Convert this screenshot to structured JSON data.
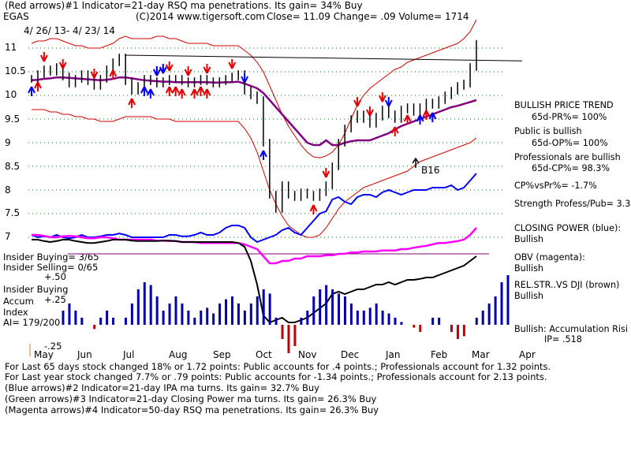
{
  "header": {
    "line1": "(Red arrows)#1 Indicator=21-day RSQ ma penetrations. Its gain= 34% Buy",
    "line2_ticker": "EGAS",
    "line2_copyright": "(C)2014 www.tigersoft.com",
    "line2_quote": "Close=  11.09  Change= .09 Volume= 1714",
    "date_range": "4/ 26/ 13-  4/ 23/ 14"
  },
  "chart_data": {
    "type": "line",
    "x_months": [
      "May",
      "Jun",
      "Jul",
      "Aug",
      "Sep",
      "Oct",
      "Nov",
      "Dec",
      "Jan",
      "Feb",
      "Mar",
      "Apr"
    ],
    "y_ticks": [
      "11",
      "10.5",
      "10",
      "9.5",
      "9",
      "8.5",
      "8",
      "7.5",
      "7"
    ],
    "price_ylim": [
      7,
      11
    ],
    "annotation": "B16",
    "accum_ticks": [
      "+.50",
      "+.25",
      "-.25"
    ],
    "price": [
      10.35,
      10.45,
      10.55,
      10.5,
      10.6,
      10.4,
      10.25,
      10.35,
      10.45,
      10.3,
      10.2,
      10.35,
      10.55,
      10.7,
      10.8,
      10.3,
      10.1,
      10.2,
      10.35,
      10.3,
      10.25,
      10.3,
      10.35,
      10.35,
      10.3,
      10.25,
      10.3,
      10.35,
      10.3,
      10.25,
      10.3,
      10.35,
      10.4,
      10.45,
      10.1,
      10.0,
      9.9,
      9.0,
      7.9,
      7.6,
      8.1,
      7.9,
      7.85,
      7.95,
      7.9,
      7.85,
      7.95,
      8.1,
      8.5,
      9.0,
      9.3,
      9.5,
      9.6,
      9.5,
      9.4,
      9.55,
      9.7,
      9.6,
      9.5,
      9.7,
      9.75,
      9.65,
      9.75,
      9.85,
      9.8,
      9.9,
      10.0,
      10.1,
      10.2,
      10.25,
      10.6,
      11.09
    ],
    "ma50": [
      10.32,
      10.33,
      10.35,
      10.36,
      10.38,
      10.38,
      10.37,
      10.36,
      10.35,
      10.34,
      10.33,
      10.32,
      10.33,
      10.35,
      10.38,
      10.38,
      10.36,
      10.34,
      10.32,
      10.31,
      10.3,
      10.29,
      10.29,
      10.28,
      10.28,
      10.28,
      10.28,
      10.28,
      10.28,
      10.27,
      10.27,
      10.28,
      10.28,
      10.29,
      10.25,
      10.2,
      10.15,
      10.05,
      9.9,
      9.75,
      9.6,
      9.45,
      9.3,
      9.15,
      9.0,
      8.95,
      8.95,
      9.05,
      8.95,
      8.95,
      9.0,
      9.03,
      9.05,
      9.05,
      9.05,
      9.1,
      9.15,
      9.2,
      9.28,
      9.35,
      9.4,
      9.45,
      9.5,
      9.55,
      9.6,
      9.65,
      9.7,
      9.75,
      9.78,
      9.82,
      9.86,
      9.9
    ],
    "band_upper": [
      11.1,
      11.15,
      11.15,
      11.2,
      11.2,
      11.15,
      11.1,
      11.05,
      11.05,
      11.0,
      11.0,
      11.0,
      11.05,
      11.1,
      11.2,
      11.25,
      11.2,
      11.2,
      11.2,
      11.2,
      11.25,
      11.25,
      11.2,
      11.2,
      11.15,
      11.1,
      11.1,
      11.1,
      11.1,
      11.05,
      11.05,
      11.05,
      11.05,
      11.05,
      10.95,
      10.85,
      10.7,
      10.5,
      10.2,
      9.9,
      9.6,
      9.35,
      9.15,
      8.95,
      8.8,
      8.7,
      8.68,
      8.72,
      8.8,
      8.95,
      9.2,
      9.5,
      9.8,
      10.0,
      10.15,
      10.25,
      10.35,
      10.45,
      10.55,
      10.6,
      10.7,
      10.75,
      10.8,
      10.85,
      10.9,
      10.95,
      11.0,
      11.05,
      11.1,
      11.2,
      11.35,
      11.6
    ],
    "band_lower": [
      9.7,
      9.7,
      9.7,
      9.65,
      9.65,
      9.6,
      9.6,
      9.55,
      9.55,
      9.5,
      9.5,
      9.45,
      9.45,
      9.45,
      9.5,
      9.55,
      9.55,
      9.55,
      9.55,
      9.55,
      9.5,
      9.5,
      9.5,
      9.45,
      9.45,
      9.45,
      9.45,
      9.45,
      9.45,
      9.45,
      9.45,
      9.45,
      9.45,
      9.45,
      9.3,
      9.1,
      8.8,
      8.4,
      8.0,
      7.7,
      7.45,
      7.25,
      7.15,
      7.05,
      7.0,
      7.0,
      7.05,
      7.2,
      7.4,
      7.6,
      7.75,
      7.85,
      7.95,
      8.05,
      8.1,
      8.15,
      8.2,
      8.25,
      8.3,
      8.35,
      8.4,
      8.5,
      8.6,
      8.65,
      8.7,
      8.75,
      8.8,
      8.85,
      8.9,
      8.95,
      9.0,
      9.1
    ],
    "closing_power": [
      7.05,
      7.0,
      7.02,
      7.0,
      7.05,
      7.0,
      6.98,
      7.0,
      7.05,
      7.0,
      7.0,
      7.02,
      7.05,
      7.05,
      7.08,
      7.05,
      7.0,
      7.0,
      7.0,
      7.0,
      7.0,
      7.0,
      7.05,
      7.05,
      7.02,
      7.02,
      7.05,
      7.1,
      7.05,
      7.05,
      7.1,
      7.2,
      7.25,
      7.25,
      7.2,
      7.0,
      6.9,
      6.95,
      7.0,
      7.05,
      7.15,
      7.2,
      7.1,
      7.05,
      7.2,
      7.35,
      7.5,
      7.55,
      7.8,
      7.85,
      7.75,
      7.7,
      7.85,
      7.9,
      7.9,
      7.85,
      7.95,
      8.0,
      7.95,
      7.9,
      7.95,
      8.0,
      8.0,
      8.0,
      8.05,
      8.05,
      8.05,
      8.1,
      8.0,
      8.05,
      8.2,
      8.35
    ],
    "obv": [
      7.05,
      7.05,
      7.03,
      7.0,
      7.0,
      7.02,
      7.03,
      7.02,
      7.0,
      6.98,
      6.98,
      7.0,
      7.0,
      6.98,
      6.95,
      6.95,
      6.95,
      6.95,
      6.95,
      6.95,
      6.93,
      6.93,
      6.92,
      6.92,
      6.9,
      6.9,
      6.9,
      6.88,
      6.88,
      6.88,
      6.88,
      6.88,
      6.88,
      6.88,
      6.85,
      6.8,
      6.75,
      6.6,
      6.45,
      6.45,
      6.5,
      6.5,
      6.55,
      6.55,
      6.6,
      6.6,
      6.6,
      6.62,
      6.62,
      6.65,
      6.65,
      6.68,
      6.68,
      6.7,
      6.7,
      6.7,
      6.72,
      6.72,
      6.72,
      6.75,
      6.75,
      6.78,
      6.8,
      6.82,
      6.85,
      6.88,
      6.88,
      6.9,
      6.92,
      6.95,
      7.05,
      7.2
    ],
    "relstr": [
      6.95,
      6.95,
      6.92,
      6.9,
      6.92,
      6.95,
      6.95,
      6.92,
      6.9,
      6.88,
      6.88,
      6.9,
      6.92,
      6.95,
      6.95,
      6.95,
      6.93,
      6.92,
      6.92,
      6.92,
      6.92,
      6.93,
      6.93,
      6.92,
      6.9,
      6.9,
      6.9,
      6.9,
      6.9,
      6.9,
      6.9,
      6.9,
      6.9,
      6.88,
      6.8,
      6.5,
      6.0,
      5.35,
      5.2,
      5.25,
      5.3,
      5.2,
      5.2,
      5.25,
      5.3,
      5.4,
      5.5,
      5.6,
      5.8,
      5.85,
      5.8,
      5.85,
      5.9,
      5.9,
      5.95,
      6.0,
      6.0,
      6.05,
      6.0,
      6.05,
      6.1,
      6.1,
      6.12,
      6.15,
      6.15,
      6.2,
      6.25,
      6.3,
      6.35,
      6.4,
      6.5,
      6.6
    ],
    "accum": [
      0.1,
      0.15,
      0.1,
      0.05,
      0.0,
      -0.03,
      0.05,
      0.1,
      0.05,
      0.0,
      0.05,
      0.15,
      0.25,
      0.3,
      0.28,
      0.2,
      0.1,
      0.15,
      0.2,
      0.15,
      0.1,
      0.05,
      0.1,
      0.12,
      0.08,
      0.15,
      0.18,
      0.2,
      0.15,
      0.1,
      0.15,
      0.2,
      0.25,
      0.22,
      0.05,
      -0.1,
      -0.2,
      -0.15,
      0.05,
      0.1,
      0.2,
      0.25,
      0.28,
      0.25,
      0.22,
      0.2,
      0.15,
      0.1,
      0.1,
      0.12,
      0.15,
      0.1,
      0.08,
      0.05,
      0.02,
      0.0,
      -0.02,
      -0.05,
      0.0,
      0.05,
      0.05,
      0.0,
      -0.05,
      -0.1,
      -0.08,
      0.0,
      0.05,
      0.1,
      0.15,
      0.2,
      0.3,
      0.35
    ],
    "red_arrows_down": [
      2,
      5,
      10,
      20,
      21,
      22,
      25,
      28,
      32,
      47,
      52,
      54,
      56
    ],
    "red_arrows_up": [
      1,
      13,
      16,
      18,
      22,
      23,
      24,
      26,
      27,
      28,
      45,
      58,
      60,
      63,
      64
    ],
    "blue_arrows_down": [
      20,
      21,
      34,
      57
    ],
    "blue_arrows_up": [
      0,
      18,
      19,
      37,
      62,
      64
    ]
  },
  "side_panel": {
    "bullish_trend": "BULLISH PRICE TREND",
    "pr": "65d-PR%= 100%",
    "public": "Public is bullish",
    "op": "65d-OP%= 100%",
    "pros": "Professionals are bullish",
    "cp": "65d-CP%= 98.3%",
    "cpvspr": "CP%vsPr%= -1.7%",
    "strength": "Strength Profess/Pub= 3.3",
    "closing_power": "CLOSING POWER (blue):",
    "closing_power_val": "Bullish",
    "obv": "OBV (magenta):",
    "obv_val": "Bullish",
    "relstr": "REL.STR..VS DJI (brown)",
    "relstr_val": "Bullish",
    "accum_risi": "Bullish: Accumulation Risi",
    "ip": "IP=  .518"
  },
  "insider": {
    "buying": "Insider Buying= 3/65",
    "selling": "Insider Selling= 0/65",
    "accum_label1": "Insider Buying",
    "accum_label2": "Accum",
    "accum_label3": "Index",
    "ai": "AI= 179/200"
  },
  "footer": {
    "line1": "For Last 65 days stock changed  18% or  1.72 points:  Public accounts for  .4 points.;  Professionals account for  1.32 points.",
    "line2": "For Last year stock changed  7.7% or  .79 points:  Public accounts for -1.34 points.;  Professionals account for  2.13 points.",
    "line3": "(Blue arrows)#2 Indicator=21-day IPA ma turns. Its gain= 32.7% Buy",
    "line4": "(Green arrows)#3 Indicator=21-day Closing Power ma turns. Its gain= 26.3% Buy",
    "line5": "(Magenta arrows)#4 Indicator=50-day RSQ ma penetrations. Its gain= 26.3% Buy"
  },
  "colors": {
    "price": "#000000",
    "ma": "#800080",
    "band": "#d00000",
    "closing_power": "#0000ff",
    "obv": "#ff00ff",
    "relstr": "#000000",
    "grid": "#008000",
    "accum": "#0000aa",
    "accum_neg": "#c00000"
  }
}
